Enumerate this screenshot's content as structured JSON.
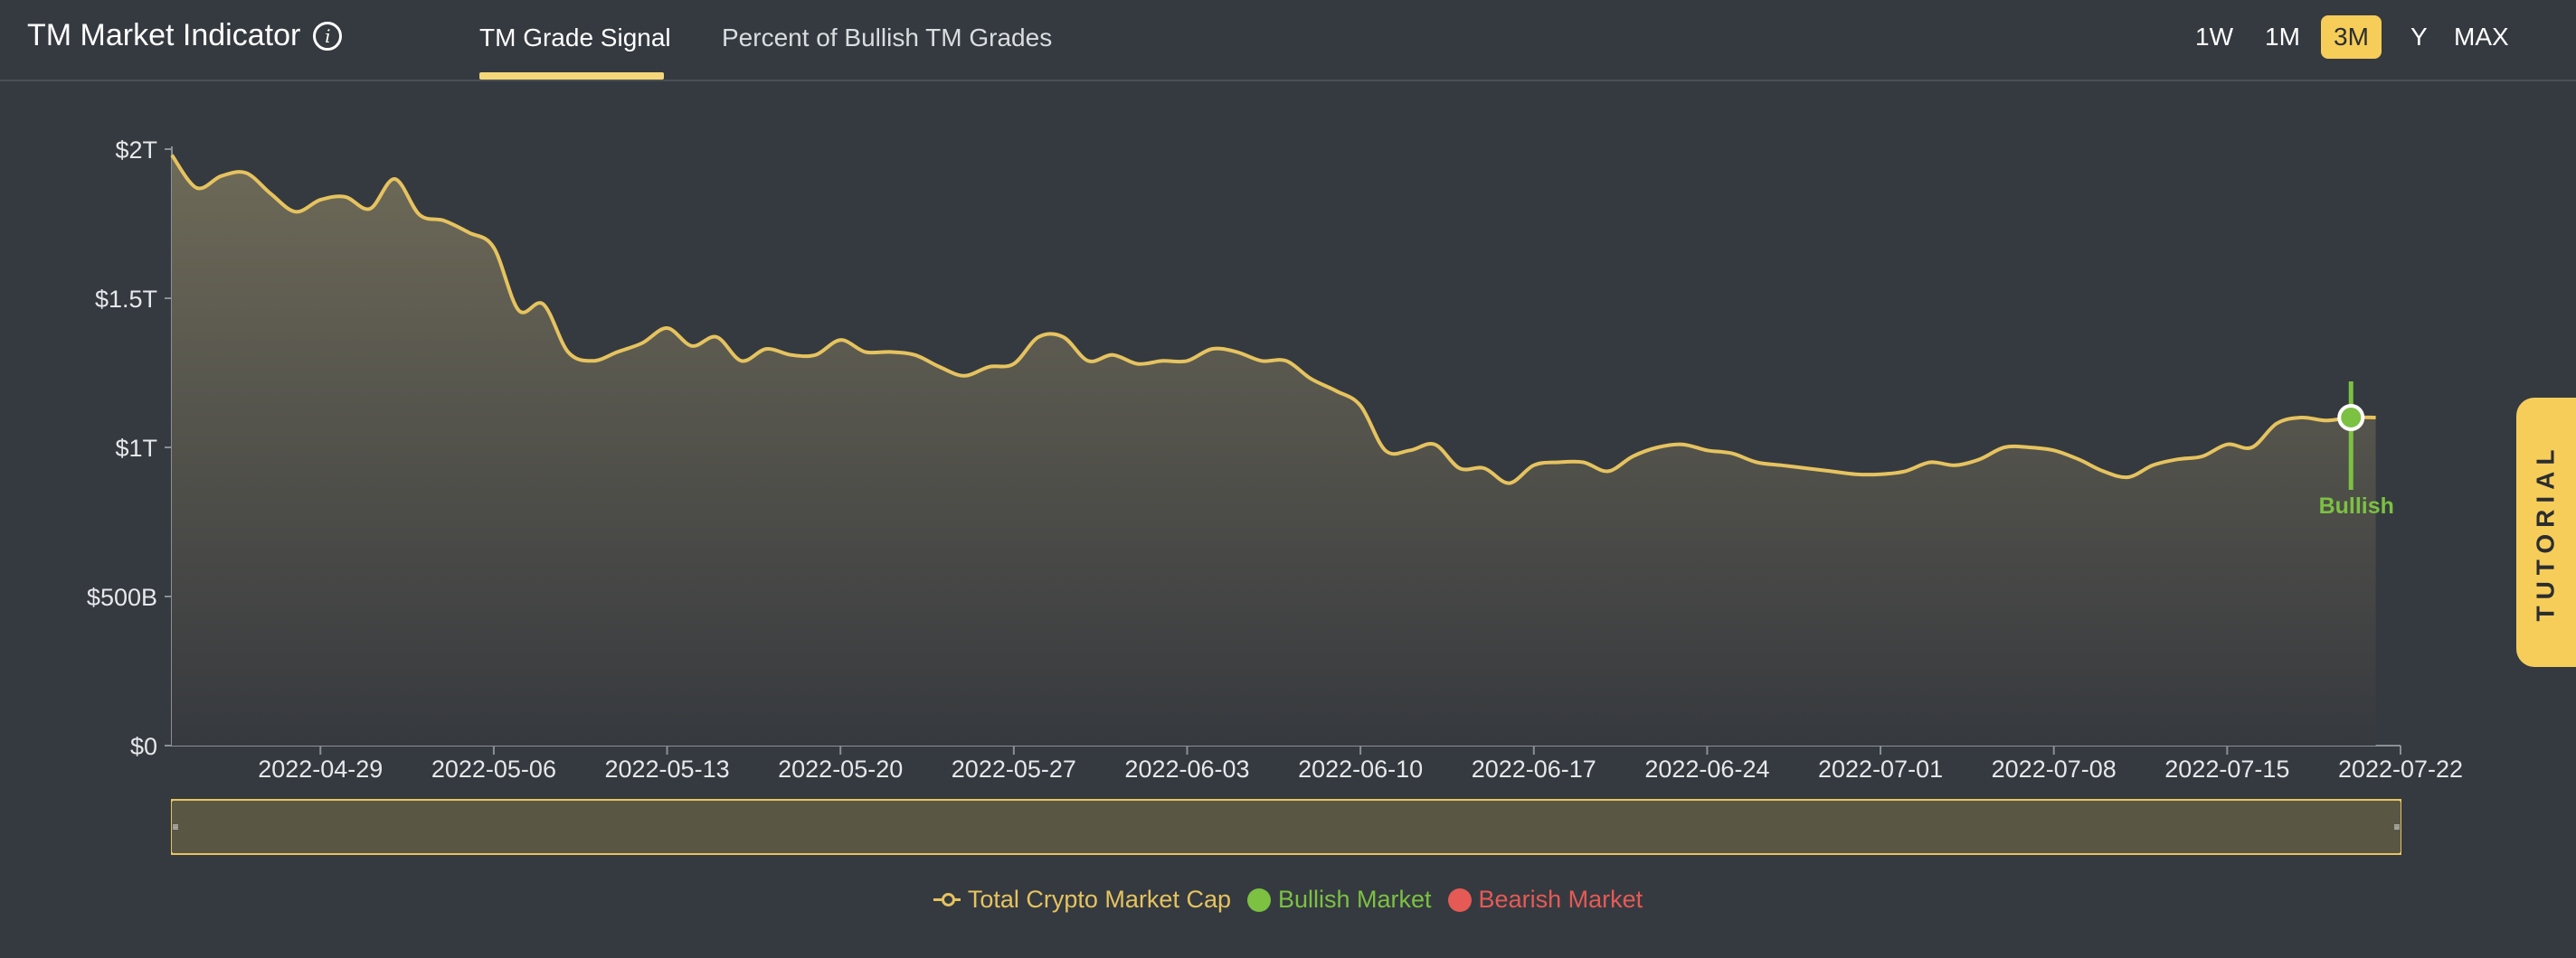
{
  "header": {
    "title": "TM Market Indicator",
    "tabs": [
      {
        "label": "TM Grade Signal",
        "active": true
      },
      {
        "label": "Percent of Bullish TM Grades",
        "active": false
      }
    ],
    "ranges": [
      {
        "label": "1W",
        "active": false
      },
      {
        "label": "1M",
        "active": false
      },
      {
        "label": "3M",
        "active": true
      },
      {
        "label": "Y",
        "active": false
      },
      {
        "label": "MAX",
        "active": false
      }
    ]
  },
  "tutorial_label": "TUTORIAL",
  "legend": [
    {
      "label": "Total Crypto Market Cap",
      "color": "#e6c35f",
      "marker": "line"
    },
    {
      "label": "Bullish Market",
      "color": "#7cc142",
      "marker": "dot"
    },
    {
      "label": "Bearish Market",
      "color": "#e65a55",
      "marker": "dot"
    }
  ],
  "colors": {
    "line": "#e6c35f",
    "bullish": "#7cc142",
    "bearish": "#e65a55",
    "accent": "#f6cd59",
    "background": "#353a40"
  },
  "chart_data": {
    "type": "area",
    "x_start": "2022-04-23",
    "y_ticks": [
      {
        "value": 0,
        "label": "$0"
      },
      {
        "value": 500,
        "label": "$500B"
      },
      {
        "value": 1000,
        "label": "$1T"
      },
      {
        "value": 1500,
        "label": "$1.5T"
      },
      {
        "value": 2000,
        "label": "$2T"
      }
    ],
    "ylim": [
      0,
      2000
    ],
    "y_unit": "billion USD",
    "x_ticks": [
      "2022-04-29",
      "2022-05-06",
      "2022-05-13",
      "2022-05-20",
      "2022-05-27",
      "2022-06-03",
      "2022-06-10",
      "2022-06-17",
      "2022-06-24",
      "2022-07-01",
      "2022-07-08",
      "2022-07-15",
      "2022-07-22"
    ],
    "xlim": [
      "2022-04-23",
      "2022-07-22"
    ],
    "series": [
      {
        "values": [
          1980,
          1870,
          1910,
          1920,
          1850,
          1790,
          1830,
          1840,
          1800,
          1900,
          1780,
          1760,
          1720,
          1670,
          1460,
          1480,
          1320,
          1290,
          1320,
          1350,
          1400,
          1340,
          1370,
          1290,
          1330,
          1310,
          1310,
          1360,
          1320,
          1320,
          1310,
          1270,
          1240,
          1270,
          1280,
          1370,
          1370,
          1290,
          1310,
          1280,
          1290,
          1290,
          1330,
          1320,
          1290,
          1290,
          1230,
          1190,
          1140,
          990,
          990,
          1010,
          930,
          930,
          880,
          940,
          950,
          950,
          920,
          970,
          1000,
          1010,
          990,
          980,
          950,
          940,
          930,
          920,
          910,
          910,
          920,
          950,
          940,
          960,
          1000,
          1000,
          990,
          960,
          920,
          900,
          940,
          960,
          970,
          1010,
          1000,
          1080,
          1100,
          1090,
          1100,
          1100
        ]
      }
    ],
    "signal": {
      "date": "2022-07-20",
      "value": 1100,
      "label": "Bullish",
      "type": "bullish"
    }
  }
}
